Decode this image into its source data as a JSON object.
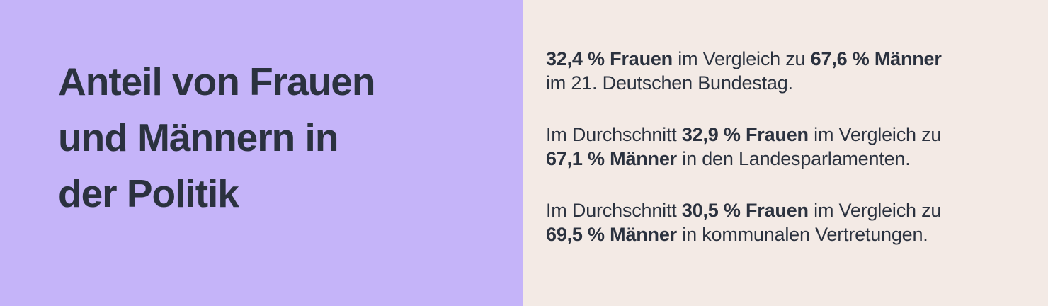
{
  "colors": {
    "left_background": "#c5b4f9",
    "right_background": "#f3eae5",
    "text": "#2b323f"
  },
  "title": {
    "lines": [
      "Anteil von Frauen",
      "und Männern in",
      "der Politik"
    ]
  },
  "stats": [
    {
      "line1": [
        {
          "text": "32,4 % Frauen",
          "bold": true
        },
        {
          "text": " im Vergleich zu ",
          "bold": false
        },
        {
          "text": "67,6 % Männer",
          "bold": true
        }
      ],
      "line2": [
        {
          "text": "im 21. Deutschen Bundestag.",
          "bold": false
        }
      ]
    },
    {
      "line1": [
        {
          "text": "Im Durchschnitt ",
          "bold": false
        },
        {
          "text": "32,9 % Frauen",
          "bold": true
        },
        {
          "text": " im Vergleich zu",
          "bold": false
        }
      ],
      "line2": [
        {
          "text": "67,1 % Männer",
          "bold": true
        },
        {
          "text": " in den Landesparlamenten.",
          "bold": false
        }
      ]
    },
    {
      "line1": [
        {
          "text": "Im Durchschnitt ",
          "bold": false
        },
        {
          "text": "30,5 % Frauen",
          "bold": true
        },
        {
          "text": " im Vergleich zu",
          "bold": false
        }
      ],
      "line2": [
        {
          "text": "69,5 % Männer",
          "bold": true
        },
        {
          "text": " in kommunalen Vertretungen.",
          "bold": false
        }
      ]
    }
  ]
}
